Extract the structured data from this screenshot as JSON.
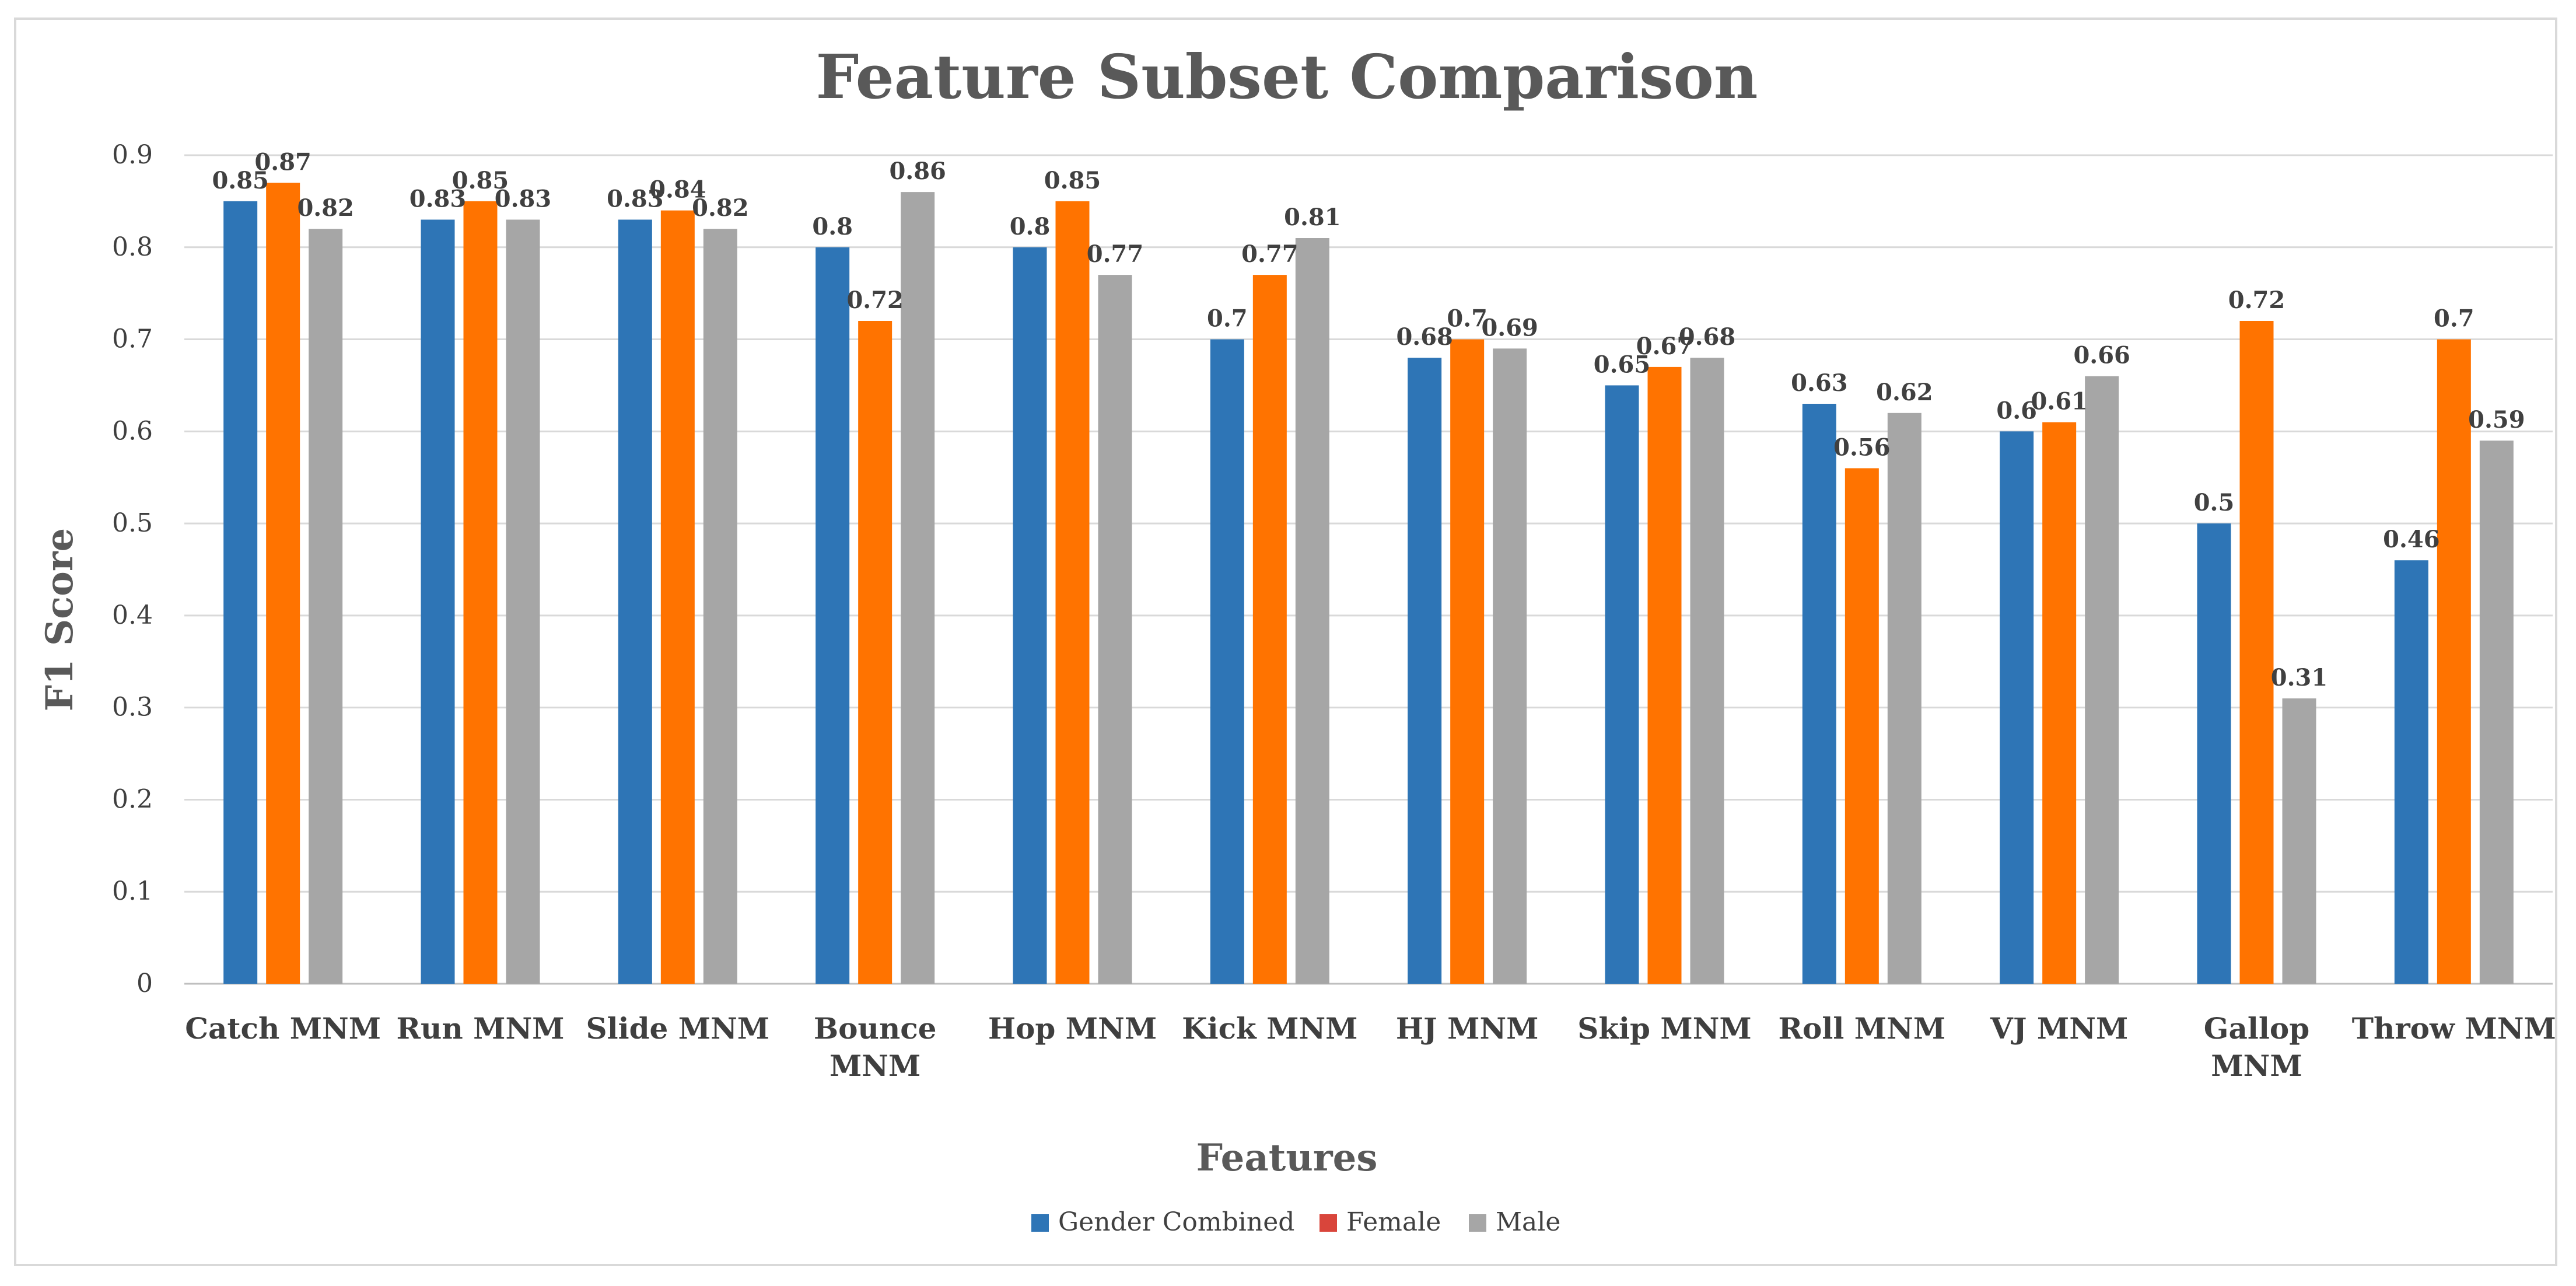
{
  "chart_data": {
    "type": "bar",
    "title": "Feature Subset Comparison",
    "xlabel": "Features",
    "ylabel": "F1 Score",
    "ylim": [
      0,
      0.9
    ],
    "yticks": [
      "0",
      "0.1",
      "0.2",
      "0.3",
      "0.4",
      "0.5",
      "0.6",
      "0.7",
      "0.8",
      "0.9"
    ],
    "grid": true,
    "legend_position": "bottom",
    "categories": [
      [
        "Catch MNM"
      ],
      [
        "Run MNM"
      ],
      [
        "Slide MNM"
      ],
      [
        "Bounce",
        "MNM"
      ],
      [
        "Hop MNM"
      ],
      [
        "Kick MNM"
      ],
      [
        "HJ MNM"
      ],
      [
        "Skip MNM"
      ],
      [
        "Roll MNM"
      ],
      [
        "VJ MNM"
      ],
      [
        "Gallop",
        "MNM"
      ],
      [
        "Throw MNM"
      ]
    ],
    "series": [
      {
        "name": "Gender Combined",
        "color": "#2e75b6",
        "legend_color": "#2e75b6",
        "values": [
          0.85,
          0.83,
          0.83,
          0.8,
          0.8,
          0.7,
          0.68,
          0.65,
          0.63,
          0.6,
          0.5,
          0.46
        ]
      },
      {
        "name": "Female",
        "color": "#ff7300",
        "legend_color": "#d9453b",
        "values": [
          0.87,
          0.85,
          0.84,
          0.72,
          0.85,
          0.77,
          0.7,
          0.67,
          0.56,
          0.61,
          0.72,
          0.7
        ]
      },
      {
        "name": "Male",
        "color": "#a6a6a6",
        "legend_color": "#a6a6a6",
        "values": [
          0.82,
          0.83,
          0.82,
          0.86,
          0.77,
          0.81,
          0.69,
          0.68,
          0.62,
          0.66,
          0.31,
          0.59
        ]
      }
    ],
    "data_labels": [
      [
        "0.85",
        "0.83",
        "0.83",
        "0.8",
        "0.8",
        "0.7",
        "0.68",
        "0.65",
        "0.63",
        "0.6",
        "0.5",
        "0.46"
      ],
      [
        "0.87",
        "0.85",
        "0.84",
        "0.72",
        "0.85",
        "0.77",
        "0.7",
        "0.67",
        "0.56",
        "0.61",
        "0.72",
        "0.7"
      ],
      [
        "0.82",
        "0.83",
        "0.82",
        "0.86",
        "0.77",
        "0.81",
        "0.69",
        "0.68",
        "0.62",
        "0.66",
        "0.31",
        "0.59"
      ]
    ],
    "colors": {
      "grid": "#d9d9d9",
      "axis": "#bfbfbf"
    }
  }
}
